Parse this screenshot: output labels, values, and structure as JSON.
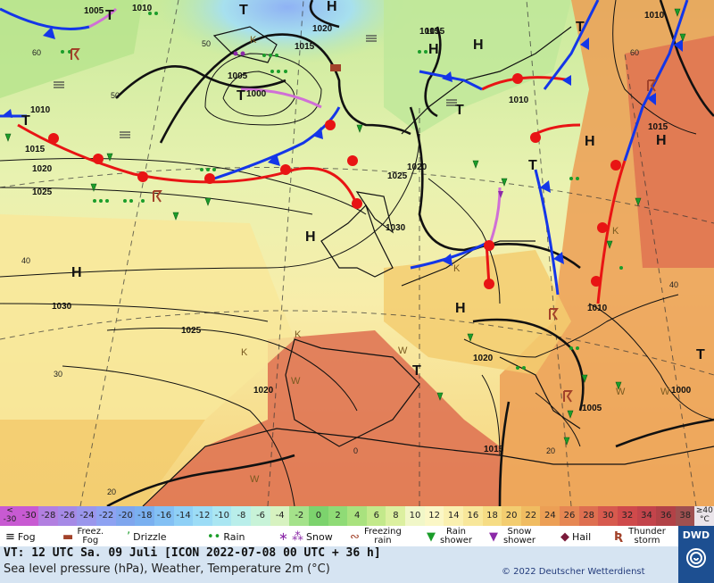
{
  "map": {
    "pressure_labels": [
      "1005",
      "1010",
      "1000",
      "1020",
      "1015",
      "1015",
      "1005",
      "1000",
      "1010",
      "1015",
      "1020",
      "1025",
      "1030",
      "1010",
      "1015",
      "1020",
      "1030",
      "1025",
      "1020",
      "1015",
      "1020",
      "1010",
      "1010",
      "1005",
      "1000",
      "1025",
      "1015"
    ],
    "high_label": "H",
    "low_label": "T",
    "temp_labels": [
      "60",
      "50",
      "40",
      "40",
      "30",
      "20",
      "60",
      "40",
      "50",
      "30",
      "0",
      "20"
    ],
    "k_label": "K",
    "w_label": "W"
  },
  "scale": {
    "first_top": "<",
    "first_bottom": "-30",
    "last_top": "≥40",
    "last_bottom": "°C",
    "values": [
      "-30",
      "-28",
      "-26",
      "-24",
      "-22",
      "-20",
      "-18",
      "-16",
      "-14",
      "-12",
      "-10",
      "-8",
      "-6",
      "-4",
      "-2",
      "0",
      "2",
      "4",
      "6",
      "8",
      "10",
      "12",
      "14",
      "16",
      "18",
      "20",
      "22",
      "24",
      "26",
      "28",
      "30",
      "32",
      "34",
      "36",
      "38"
    ],
    "colors": [
      "#c85ad2",
      "#b27fe0",
      "#a68ae6",
      "#9a96ec",
      "#8ea2f2",
      "#7fa6ee",
      "#7ab0f0",
      "#83c0f4",
      "#8fd0f6",
      "#9cdcf6",
      "#aae6f2",
      "#b9eeea",
      "#c8f3d8",
      "#d7f2c0",
      "#a4e28a",
      "#7cd36d",
      "#8fdb76",
      "#a9e27e",
      "#c3e98b",
      "#dcf0a0",
      "#f1f7c8",
      "#fbf7c6",
      "#faf0b0",
      "#f8e79a",
      "#f6dc84",
      "#f3cd70",
      "#f0bc61",
      "#ec9f55",
      "#e68753",
      "#de6f50",
      "#d75a4e",
      "#cf4a4b",
      "#c3444b",
      "#b24247",
      "#9f5050"
    ]
  },
  "legend": {
    "fog": "Fog",
    "freezing_fog": "Freez. Fog",
    "drizzle": "Drizzle",
    "rain": "Rain",
    "snow": "Snow",
    "freezing_rain": "Freezing rain",
    "rain_shower": "Rain shower",
    "snow_shower": "Snow shower",
    "hail": "Hail",
    "thunderstorm": "Thunder storm"
  },
  "info": {
    "vt": "VT: 12 UTC Sa.  09 Juli [ICON 2022-07-08  00 UTC + 36 h]",
    "subtitle": "Sea level pressure (hPa), Weather, Temperature 2m (°C)",
    "copyright": "© 2022 Deutscher Wetterdienst",
    "logo": "DWD"
  },
  "colors": {
    "cold_front": "#1436e8",
    "warm_front": "#e81414",
    "occluded_front": "#d06fd6",
    "isobar": "#111111",
    "info_bg": "#d6e4f2",
    "logo_bg": "#1d4f91"
  }
}
